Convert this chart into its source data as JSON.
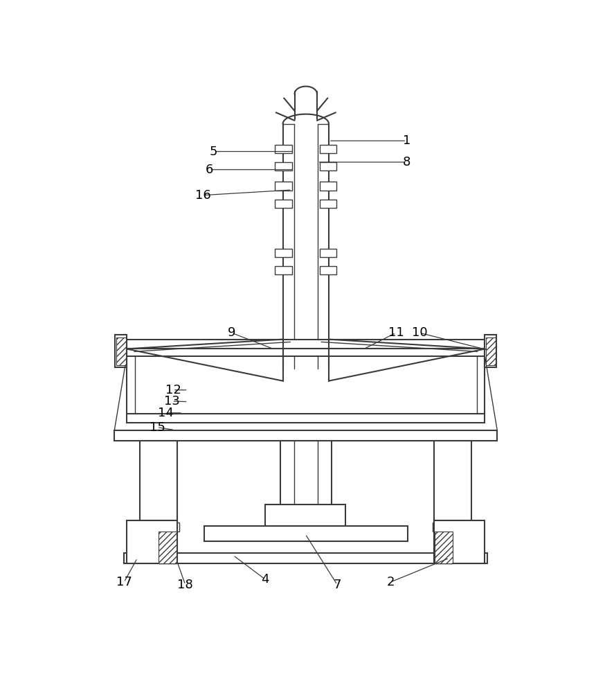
{
  "fig_width": 8.62,
  "fig_height": 10.0,
  "dpi": 100,
  "line_color": "#3a3a3a",
  "bg_color": "#ffffff"
}
